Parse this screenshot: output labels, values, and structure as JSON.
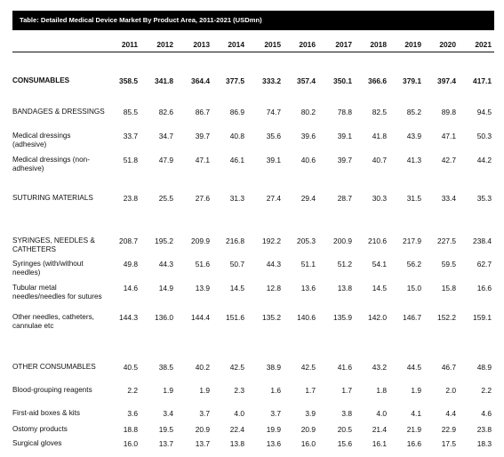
{
  "title": "Table: Detailed Medical Device Market By Product Area, 2011-2021 (USDmn)",
  "years": [
    "2011",
    "2012",
    "2013",
    "2014",
    "2015",
    "2016",
    "2017",
    "2018",
    "2019",
    "2020",
    "2021"
  ],
  "rows": [
    {
      "label": "CONSUMABLES",
      "major": true,
      "values": [
        "358.5",
        "341.8",
        "364.4",
        "377.5",
        "333.2",
        "357.4",
        "350.1",
        "366.6",
        "379.1",
        "397.4",
        "417.1"
      ]
    },
    {
      "label": "BANDAGES & DRESSINGS",
      "major": false,
      "values": [
        "85.5",
        "82.6",
        "86.7",
        "86.9",
        "74.7",
        "80.2",
        "78.8",
        "82.5",
        "85.2",
        "89.8",
        "94.5"
      ]
    },
    {
      "label": "Medical dressings (adhesive)",
      "major": false,
      "values": [
        "33.7",
        "34.7",
        "39.7",
        "40.8",
        "35.6",
        "39.6",
        "39.1",
        "41.8",
        "43.9",
        "47.1",
        "50.3"
      ]
    },
    {
      "label": "Medical dressings (non-adhesive)",
      "major": false,
      "values": [
        "51.8",
        "47.9",
        "47.1",
        "46.1",
        "39.1",
        "40.6",
        "39.7",
        "40.7",
        "41.3",
        "42.7",
        "44.2"
      ]
    },
    {
      "label": "SUTURING MATERIALS",
      "major": false,
      "values": [
        "23.8",
        "25.5",
        "27.6",
        "31.3",
        "27.4",
        "29.4",
        "28.7",
        "30.3",
        "31.5",
        "33.4",
        "35.3"
      ]
    },
    {
      "label": "SYRINGES, NEEDLES & CATHETERS",
      "major": false,
      "values": [
        "208.7",
        "195.2",
        "209.9",
        "216.8",
        "192.2",
        "205.3",
        "200.9",
        "210.6",
        "217.9",
        "227.5",
        "238.4"
      ]
    },
    {
      "label": "Syringes (with/without needles)",
      "major": false,
      "values": [
        "49.8",
        "44.3",
        "51.6",
        "50.7",
        "44.3",
        "51.1",
        "51.2",
        "54.1",
        "56.2",
        "59.5",
        "62.7"
      ]
    },
    {
      "label": "Tubular metal needles/needles for sutures",
      "major": false,
      "values": [
        "14.6",
        "14.9",
        "13.9",
        "14.5",
        "12.8",
        "13.6",
        "13.8",
        "14.5",
        "15.0",
        "15.8",
        "16.6"
      ]
    },
    {
      "label": "Other needles, catheters, cannulae etc",
      "major": false,
      "values": [
        "144.3",
        "136.0",
        "144.4",
        "151.6",
        "135.2",
        "140.6",
        "135.9",
        "142.0",
        "146.7",
        "152.2",
        "159.1"
      ]
    },
    {
      "label": "OTHER CONSUMABLES",
      "major": false,
      "values": [
        "40.5",
        "38.5",
        "40.2",
        "42.5",
        "38.9",
        "42.5",
        "41.6",
        "43.2",
        "44.5",
        "46.7",
        "48.9"
      ]
    },
    {
      "label": "Blood-grouping reagents",
      "major": false,
      "values": [
        "2.2",
        "1.9",
        "1.9",
        "2.3",
        "1.6",
        "1.7",
        "1.7",
        "1.8",
        "1.9",
        "2.0",
        "2.2"
      ]
    },
    {
      "label": "First-aid boxes & kits",
      "major": false,
      "values": [
        "3.6",
        "3.4",
        "3.7",
        "4.0",
        "3.7",
        "3.9",
        "3.8",
        "4.0",
        "4.1",
        "4.4",
        "4.6"
      ]
    },
    {
      "label": "Ostomy products",
      "major": false,
      "values": [
        "18.8",
        "19.5",
        "20.9",
        "22.4",
        "19.9",
        "20.9",
        "20.5",
        "21.4",
        "21.9",
        "22.9",
        "23.8"
      ]
    },
    {
      "label": "Surgical gloves",
      "major": false,
      "values": [
        "16.0",
        "13.7",
        "13.7",
        "13.8",
        "13.6",
        "16.0",
        "15.6",
        "16.1",
        "16.6",
        "17.5",
        "18.3"
      ]
    }
  ]
}
